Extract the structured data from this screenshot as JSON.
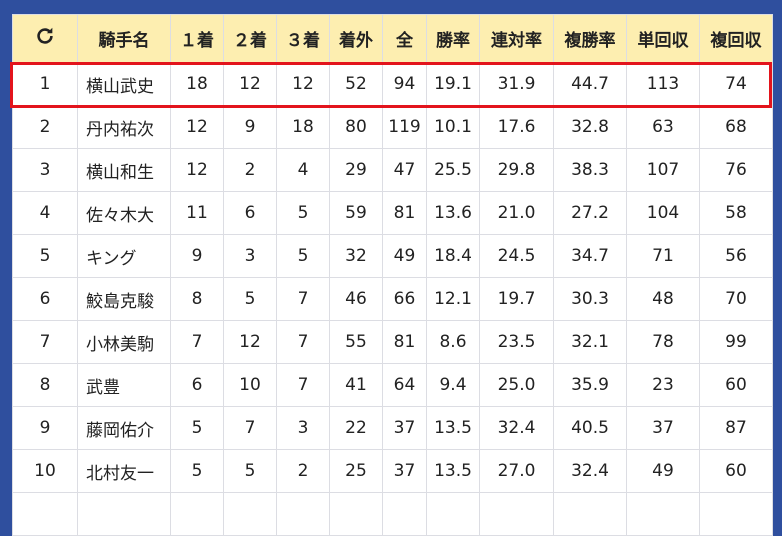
{
  "header": {
    "refresh_icon": "refresh-icon",
    "columns": [
      "騎手名",
      "１着",
      "２着",
      "３着",
      "着外",
      "全",
      "勝率",
      "連対率",
      "複勝率",
      "単回収",
      "複回収"
    ]
  },
  "highlight_color": "#e3141c",
  "rows": [
    [
      "1",
      "横山武史",
      "18",
      "12",
      "12",
      "52",
      "94",
      "19.1",
      "31.9",
      "44.7",
      "113",
      "74"
    ],
    [
      "2",
      "丹内祐次",
      "12",
      "9",
      "18",
      "80",
      "119",
      "10.1",
      "17.6",
      "32.8",
      "63",
      "68"
    ],
    [
      "3",
      "横山和生",
      "12",
      "2",
      "4",
      "29",
      "47",
      "25.5",
      "29.8",
      "38.3",
      "107",
      "76"
    ],
    [
      "4",
      "佐々木大",
      "11",
      "6",
      "5",
      "59",
      "81",
      "13.6",
      "21.0",
      "27.2",
      "104",
      "58"
    ],
    [
      "5",
      "キング",
      "9",
      "3",
      "5",
      "32",
      "49",
      "18.4",
      "24.5",
      "34.7",
      "71",
      "56"
    ],
    [
      "6",
      "鮫島克駿",
      "8",
      "5",
      "7",
      "46",
      "66",
      "12.1",
      "19.7",
      "30.3",
      "48",
      "70"
    ],
    [
      "7",
      "小林美駒",
      "7",
      "12",
      "7",
      "55",
      "81",
      "8.6",
      "23.5",
      "32.1",
      "78",
      "99"
    ],
    [
      "8",
      "武豊",
      "6",
      "10",
      "7",
      "41",
      "64",
      "9.4",
      "25.0",
      "35.9",
      "23",
      "60"
    ],
    [
      "9",
      "藤岡佑介",
      "5",
      "7",
      "3",
      "22",
      "37",
      "13.5",
      "32.4",
      "40.5",
      "37",
      "87"
    ],
    [
      "10",
      "北村友一",
      "5",
      "5",
      "2",
      "25",
      "37",
      "13.5",
      "27.0",
      "32.4",
      "49",
      "60"
    ]
  ]
}
